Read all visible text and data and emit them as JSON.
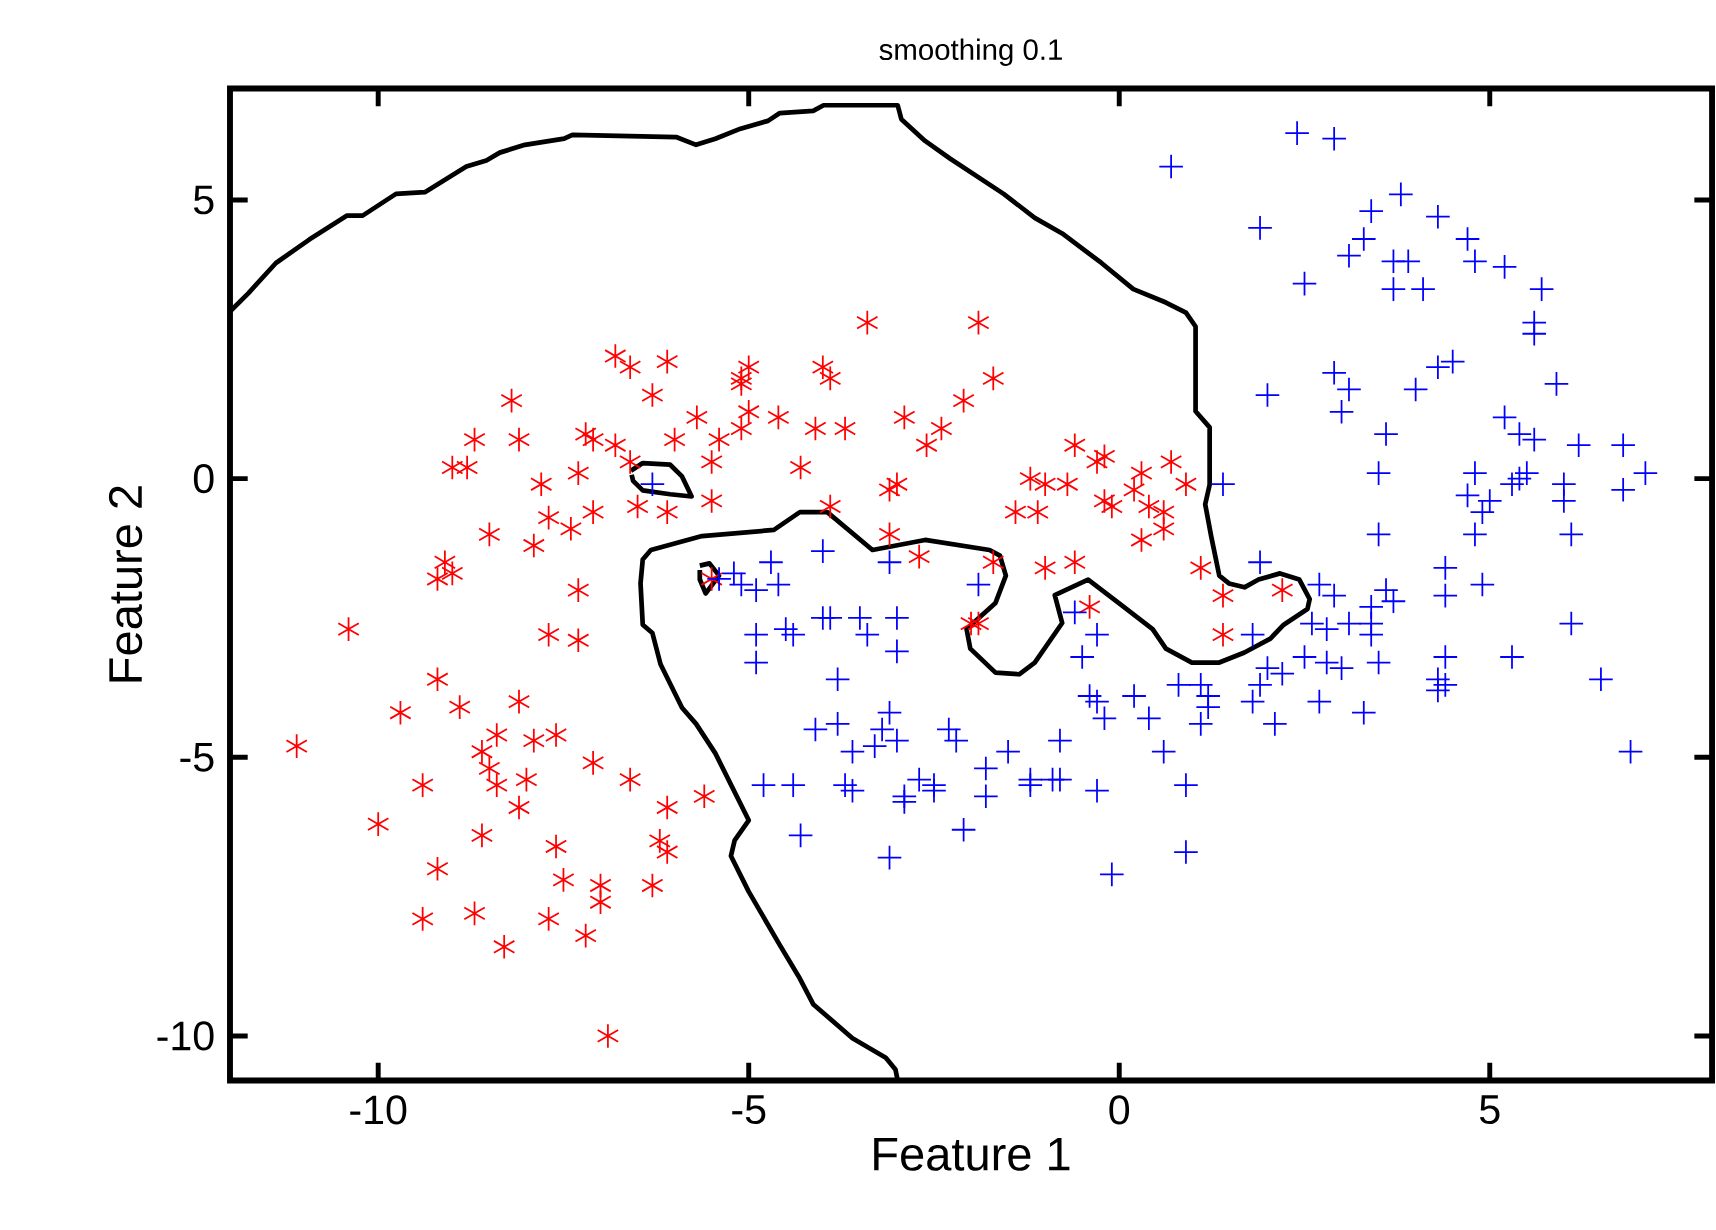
{
  "chart_data": {
    "type": "scatter",
    "title": "smoothing 0.1",
    "xlabel": "Feature 1",
    "ylabel": "Feature 2",
    "xlim": [
      -12,
      8
    ],
    "ylim": [
      -10.8,
      7
    ],
    "xticks": [
      -10,
      -5,
      0,
      5
    ],
    "yticks": [
      -10,
      -5,
      0,
      5
    ],
    "series": [
      {
        "color": "#ff0000",
        "x": [
          -11.1,
          -10.4,
          -10.0,
          -9.7,
          -9.4,
          -9.4,
          -9.2,
          -9.1,
          -9.0,
          -9.2,
          -9.2,
          -8.9,
          -9.0,
          -8.8,
          -8.7,
          -8.6,
          -8.5,
          -8.3,
          -8.1,
          -8.2,
          -8.7,
          -8.1,
          -8.5,
          -8.4,
          -8.1,
          -8.6,
          -8.4,
          -8.0,
          -7.9,
          -7.8,
          -7.9,
          -7.6,
          -7.5,
          -7.6,
          -7.3,
          -7.1,
          -7.2,
          -7.3,
          -7.7,
          -7.2,
          -7.0,
          -7.0,
          -6.6,
          -6.3,
          -6.2,
          -6.1,
          -6.1,
          -6.9,
          -7.7,
          -7.4,
          -7.1,
          -7.7,
          -7.3,
          -6.8,
          -6.6,
          -6.1,
          -6.3,
          -7.1,
          -6.8,
          -6.6,
          -6.0,
          -5.7,
          -5.4,
          -5.5,
          -6.5,
          -6.1,
          -5.5,
          -5.1,
          -5.0,
          -5.0,
          -4.6,
          -4.3,
          -4.0,
          -3.9,
          -3.4,
          -2.9,
          -2.4,
          -2.1,
          -1.9,
          -1.7,
          -2.6,
          -1.4,
          -1.2,
          -0.6,
          -3.7,
          -4.1,
          -3.9,
          -3.1,
          -3.0,
          -0.7,
          -0.2,
          -1.1,
          -1.0,
          -0.3,
          -0.1,
          -0.2,
          0.3,
          0.6,
          0.6,
          0.7,
          0.9,
          0.2,
          0.4,
          0.3,
          -0.6,
          -0.4,
          -1.0,
          -1.7,
          -1.9,
          -2.0,
          -2.7,
          -3.1,
          1.1,
          1.4,
          1.4,
          2.2,
          -5.5,
          -5.6,
          -5.1,
          -5.1
        ],
        "values": [
          -4.8,
          -2.7,
          -6.2,
          -4.2,
          -5.5,
          -7.9,
          -7.0,
          -1.5,
          -1.7,
          -1.8,
          -3.6,
          -4.1,
          0.2,
          0.2,
          -7.8,
          -6.4,
          -5.2,
          -8.4,
          -4.0,
          1.4,
          0.7,
          0.7,
          -1.0,
          -5.5,
          -5.9,
          -4.9,
          -4.6,
          -5.4,
          -4.7,
          -0.1,
          -1.2,
          -6.6,
          -7.2,
          -4.6,
          -2.0,
          -5.1,
          0.8,
          0.1,
          -7.9,
          -8.2,
          -7.6,
          -7.3,
          -5.4,
          -7.3,
          -6.5,
          -6.7,
          -5.9,
          -10.0,
          -0.7,
          -0.9,
          -0.6,
          -2.8,
          -2.9,
          2.2,
          2.0,
          2.1,
          1.5,
          0.7,
          0.6,
          0.3,
          0.7,
          1.1,
          0.7,
          0.3,
          -0.5,
          -0.6,
          -0.4,
          1.8,
          1.2,
          2.0,
          1.1,
          0.2,
          2.0,
          1.8,
          2.8,
          1.1,
          0.9,
          1.4,
          2.8,
          1.8,
          0.6,
          -0.6,
          0.0,
          0.6,
          0.9,
          0.9,
          -0.5,
          -0.2,
          -0.1,
          -0.1,
          0.4,
          -0.6,
          -0.1,
          0.3,
          -0.5,
          -0.4,
          -1.1,
          -0.6,
          -0.9,
          0.3,
          -0.1,
          -0.2,
          -0.5,
          0.1,
          -1.5,
          -2.3,
          -1.6,
          -1.5,
          -2.6,
          -2.6,
          -1.4,
          -1.0,
          -1.6,
          -2.1,
          -2.8,
          -2.0,
          -1.8,
          -5.7,
          0.9,
          1.7
        ]
      },
      {
        "marker": "cross",
        "color": "#0000ff",
        "x": [
          2.4,
          2.9,
          3.8,
          3.4,
          4.3,
          4.7,
          3.3,
          3.1,
          3.7,
          3.9,
          4.8,
          5.2,
          2.5,
          3.7,
          4.1,
          5.7,
          5.6,
          5.6,
          4.3,
          4.5,
          5.9,
          2.9,
          3.1,
          4.0,
          2.0,
          3.0,
          5.2,
          5.4,
          5.6,
          6.2,
          6.8,
          7.1,
          3.6,
          3.5,
          4.8,
          5.3,
          5.4,
          5.5,
          6.0,
          4.7,
          5.0,
          4.9,
          6.0,
          6.8,
          6.1,
          3.5,
          4.8,
          4.4,
          6.1,
          6.5,
          6.9,
          5.3,
          4.3,
          4.3,
          4.4,
          3.5,
          4.4,
          3.7,
          3.4,
          3.4,
          4.9,
          4.4,
          2.7,
          2.9,
          3.6,
          3.4,
          3.1,
          2.8,
          2.8,
          3.0,
          2.5,
          2.2,
          1.9,
          2.0,
          1.8,
          2.1,
          2.7,
          3.3,
          2.6,
          1.9,
          1.4,
          1.8,
          1.1,
          1.2,
          1.2,
          1.1,
          0.8,
          0.4,
          0.2,
          0.6,
          0.9,
          0.9,
          -0.2,
          -0.3,
          -0.8,
          -0.1,
          -0.6,
          -0.3,
          -0.5,
          -0.3,
          -0.4,
          -2.3,
          -2.2,
          -1.2,
          -1.5,
          -1.8,
          -2.1,
          -1.2,
          -0.9,
          -0.8,
          -2.9,
          -3.0,
          -2.9,
          -2.7,
          -2.5,
          -1.8,
          -2.5,
          -3.2,
          -3.1,
          -3.6,
          -3.8,
          -3.7,
          -3.6,
          -3.3,
          -4.1,
          -4.4,
          -4.3,
          -3.1,
          -3.4,
          -3.8,
          -4.0,
          -3.9,
          -3.5,
          -3.0,
          -3.0,
          -4.4,
          -4.7,
          -4.0,
          -3.1,
          -4.9,
          -5.2,
          -5.1,
          -4.6,
          -4.9,
          -4.5,
          -4.9,
          -4.8,
          -5.4,
          -1.9,
          1.9,
          0.7,
          -6.3
        ],
        "values": [
          6.2,
          6.1,
          5.1,
          4.8,
          4.7,
          4.3,
          4.3,
          4.0,
          3.9,
          3.9,
          3.9,
          3.8,
          3.5,
          3.4,
          3.4,
          3.4,
          2.8,
          2.6,
          2.0,
          2.1,
          1.7,
          1.9,
          1.6,
          1.6,
          1.5,
          1.2,
          1.1,
          0.8,
          0.7,
          0.6,
          0.6,
          0.1,
          0.8,
          0.1,
          0.1,
          -0.1,
          0.0,
          0.1,
          -0.1,
          -0.3,
          -0.4,
          -0.6,
          -0.4,
          -0.2,
          -1.0,
          -1.0,
          -1.0,
          -1.6,
          -2.6,
          -3.6,
          -4.9,
          -3.2,
          -3.6,
          -3.8,
          -3.7,
          -3.3,
          -3.2,
          -2.2,
          -2.6,
          -2.8,
          -1.9,
          -2.1,
          -1.9,
          -2.1,
          -2.0,
          -2.3,
          -2.6,
          -2.7,
          -3.3,
          -3.4,
          -3.2,
          -3.5,
          -3.7,
          -3.4,
          -4.0,
          -4.4,
          -4.0,
          -4.2,
          -2.6,
          -1.5,
          -0.1,
          -2.8,
          -3.7,
          -3.9,
          -4.1,
          -4.4,
          -3.7,
          -4.3,
          -3.9,
          -4.9,
          -5.5,
          -6.7,
          -4.3,
          -5.6,
          -5.4,
          -7.1,
          -2.4,
          -2.8,
          -3.2,
          -4.0,
          -3.9,
          -4.5,
          -4.7,
          -5.5,
          -4.9,
          -5.2,
          -6.3,
          -5.4,
          -5.4,
          -4.7,
          -5.8,
          -4.7,
          -5.7,
          -5.4,
          -5.5,
          -5.7,
          -5.6,
          -4.5,
          -4.2,
          -4.9,
          -4.4,
          -5.5,
          -5.6,
          -4.8,
          -4.5,
          -5.5,
          -6.4,
          -6.8,
          -2.8,
          -3.6,
          -2.5,
          -2.5,
          -2.5,
          -2.5,
          -3.1,
          -2.8,
          -1.5,
          -1.3,
          -1.5,
          -2.8,
          -1.7,
          -1.9,
          -1.9,
          -2.0,
          -2.7,
          -3.3,
          -5.5,
          -1.8,
          -1.9,
          4.5,
          5.6,
          -0.1
        ]
      },
      {
        "type": "line",
        "marker": "none",
        "line_style": "solid",
        "color": "#000000",
        "x": [
          -12.0,
          -11.75,
          -11.38,
          -10.93,
          -10.42,
          -10.21,
          -9.76,
          -9.37,
          -8.81,
          -8.54,
          -8.36,
          -8.02,
          -7.49,
          -7.38,
          -5.98,
          -5.71,
          -5.45,
          -5.11,
          -4.74,
          -4.58,
          -4.13,
          -3.99,
          -2.99,
          -2.94,
          -2.62,
          -2.28,
          -1.56,
          -1.14,
          -0.77,
          -0.24,
          0.19,
          0.63,
          0.9,
          1.03,
          1.03,
          1.22,
          1.22,
          1.16,
          1.24,
          1.35,
          1.48,
          1.69,
          1.88,
          2.17,
          2.43,
          2.57,
          2.54,
          2.22,
          2.04,
          1.69,
          1.35,
          0.98,
          0.63,
          0.45,
          0.03,
          -0.42,
          -0.87,
          -0.77,
          -1.14,
          -1.35,
          -1.67,
          -2.01,
          -2.06,
          -1.67,
          -1.53,
          -1.61,
          -1.75,
          -2.62,
          -3.33,
          -3.94,
          -4.31,
          -4.66,
          -5.63,
          -6.32,
          -6.43,
          -6.46,
          -6.43,
          -6.3,
          -6.19,
          -5.9,
          -5.71,
          -5.45,
          -5.0,
          -5.19,
          -5.24,
          -5.0,
          -4.58,
          -4.31,
          -4.13,
          -3.6,
          -3.15,
          -3.02,
          -2.99
        ],
        "values": [
          3.0,
          3.33,
          3.87,
          4.29,
          4.72,
          4.72,
          5.11,
          5.14,
          5.6,
          5.71,
          5.85,
          5.99,
          6.1,
          6.17,
          6.13,
          5.99,
          6.1,
          6.28,
          6.42,
          6.56,
          6.6,
          6.7,
          6.7,
          6.45,
          6.06,
          5.74,
          5.11,
          4.68,
          4.4,
          3.87,
          3.4,
          3.16,
          2.98,
          2.73,
          1.21,
          0.92,
          -0.11,
          -0.46,
          -1.03,
          -1.74,
          -1.88,
          -1.95,
          -1.81,
          -1.7,
          -1.81,
          -2.16,
          -2.34,
          -2.62,
          -2.87,
          -3.12,
          -3.3,
          -3.3,
          -3.05,
          -2.7,
          -2.27,
          -1.81,
          -2.09,
          -2.59,
          -3.3,
          -3.51,
          -3.48,
          -3.05,
          -2.7,
          -2.23,
          -1.74,
          -1.38,
          -1.28,
          -1.1,
          -1.28,
          -0.6,
          -0.6,
          -0.92,
          -1.03,
          -1.28,
          -1.45,
          -1.88,
          -2.62,
          -2.77,
          -3.33,
          -4.11,
          -4.4,
          -4.93,
          -6.13,
          -6.49,
          -6.77,
          -7.41,
          -8.37,
          -8.97,
          -9.43,
          -10.04,
          -10.39,
          -10.6,
          -10.8
        ]
      },
      {
        "type": "line",
        "marker": "none",
        "line_style": "solid",
        "color": "#000000",
        "x": [
          -6.59,
          -6.43,
          -6.06,
          -5.9,
          -5.77,
          -6.06,
          -6.43,
          -6.56,
          -6.58
        ],
        "values": [
          0.14,
          0.28,
          0.25,
          0.04,
          -0.32,
          -0.28,
          -0.21,
          -0.04,
          0.07
        ]
      },
      {
        "type": "line",
        "marker": "none",
        "line_style": "solid",
        "color": "#000000",
        "x": [
          -5.66,
          -5.53,
          -5.4,
          -5.58,
          -5.66,
          -5.66
        ],
        "values": [
          -1.56,
          -1.52,
          -1.74,
          -2.06,
          -1.81,
          -1.64
        ]
      }
    ]
  }
}
